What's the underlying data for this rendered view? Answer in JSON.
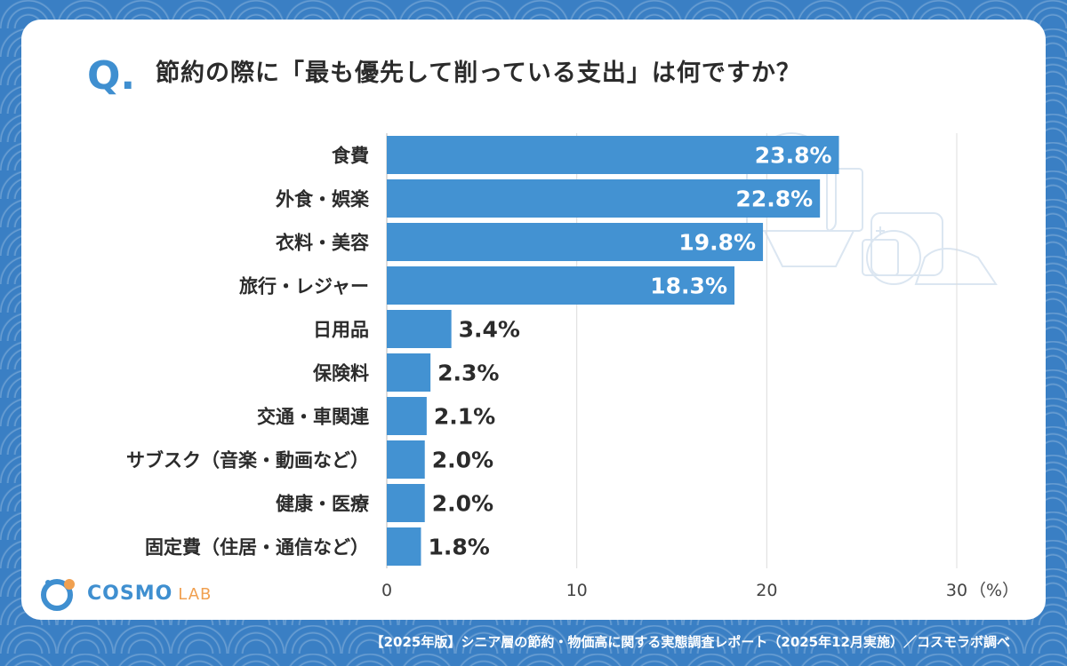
{
  "question": {
    "mark": "Q.",
    "text": "節約の際に「最も優先して削っている支出」は何ですか？"
  },
  "logo": {
    "main": "COSMO",
    "sub": "LAB"
  },
  "footer": "【2025年版】シニア層の節約・物価高に関する実態調査レポート（2025年12月実施）／コスモラボ調べ",
  "colors": {
    "bar": "#4392d2",
    "accent": "#3f8fd0",
    "background": "#3a7fc4"
  },
  "chart_data": {
    "type": "bar",
    "orientation": "horizontal",
    "categories": [
      "食費",
      "外食・娯楽",
      "衣料・美容",
      "旅行・レジャー",
      "日用品",
      "保険料",
      "交通・車関連",
      "サブスク（音楽・動画など）",
      "健康・医療",
      "固定費（住居・通信など）"
    ],
    "values": [
      23.8,
      22.8,
      19.8,
      18.3,
      3.4,
      2.3,
      2.1,
      2.0,
      2.0,
      1.8
    ],
    "value_labels": [
      "23.8%",
      "22.8%",
      "19.8%",
      "18.3%",
      "3.4%",
      "2.3%",
      "2.1%",
      "2.0%",
      "2.0%",
      "1.8%"
    ],
    "x_ticks": [
      "0",
      "10",
      "20",
      "30"
    ],
    "x_unit": "（%）",
    "xlim": [
      0,
      30
    ],
    "grid": true
  }
}
